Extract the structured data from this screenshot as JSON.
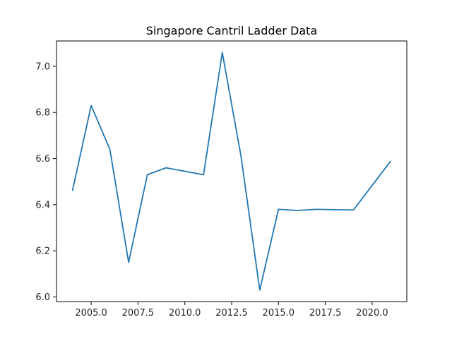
{
  "chart_data": {
    "type": "line",
    "title": "Singapore Cantril Ladder Data",
    "xlabel": "",
    "ylabel": "",
    "xlim": [
      2003.15,
      2021.85
    ],
    "ylim": [
      5.98,
      7.11
    ],
    "grid": false,
    "x_ticks": [
      2005.0,
      2007.5,
      2010.0,
      2012.5,
      2015.0,
      2017.5,
      2020.0
    ],
    "x_tick_labels": [
      "2005.0",
      "2007.5",
      "2010.0",
      "2012.5",
      "2015.0",
      "2017.5",
      "2020.0"
    ],
    "y_ticks": [
      6.0,
      6.2,
      6.4,
      6.6,
      6.8,
      7.0
    ],
    "y_tick_labels": [
      "6.0",
      "6.2",
      "6.4",
      "6.6",
      "6.8",
      "7.0"
    ],
    "series": [
      {
        "color": "#1f77b4",
        "x": [
          2004,
          2005,
          2006,
          2007,
          2008,
          2009,
          2011,
          2012,
          2013,
          2014,
          2015,
          2016,
          2017,
          2019,
          2021
        ],
        "y": [
          6.46,
          6.83,
          6.64,
          6.15,
          6.53,
          6.56,
          6.53,
          7.06,
          6.61,
          6.03,
          6.38,
          6.375,
          6.38,
          6.377,
          6.59
        ]
      }
    ]
  }
}
